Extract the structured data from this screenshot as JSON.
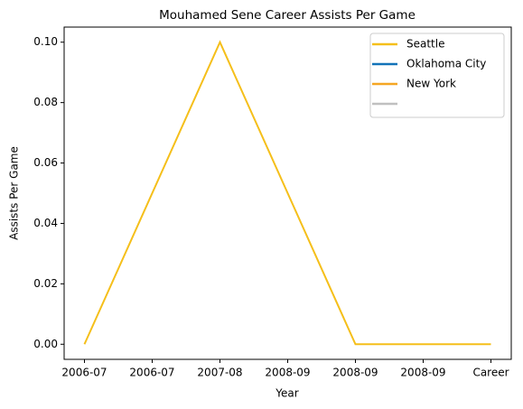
{
  "chart_data": {
    "type": "line",
    "title": "Mouhamed Sene Career Assists Per Game",
    "xlabel": "Year",
    "ylabel": "Assists Per Game",
    "x": [
      0,
      1,
      2,
      3
    ],
    "xlim": [
      -0.15,
      3.15
    ],
    "xticks": [
      {
        "value": 0,
        "label": "2006-07"
      },
      {
        "value": 0.5,
        "label": "2006-07"
      },
      {
        "value": 1,
        "label": "2007-08"
      },
      {
        "value": 1.5,
        "label": "2008-09"
      },
      {
        "value": 2,
        "label": "2008-09"
      },
      {
        "value": 2.5,
        "label": "2008-09"
      },
      {
        "value": 3,
        "label": "Career"
      }
    ],
    "ylim": [
      -0.005,
      0.105
    ],
    "yticks": [
      {
        "value": 0,
        "label": "0.00"
      },
      {
        "value": 0.02,
        "label": "0.02"
      },
      {
        "value": 0.04,
        "label": "0.04"
      },
      {
        "value": 0.06,
        "label": "0.06"
      },
      {
        "value": 0.08,
        "label": "0.08"
      },
      {
        "value": 0.1,
        "label": "0.10"
      }
    ],
    "legend": "upper right",
    "series": [
      {
        "name": "Seattle",
        "color": "#f5bf1a",
        "values": [
          0,
          0.1,
          0,
          0
        ]
      },
      {
        "name": "Oklahoma City",
        "color": "#1273b8",
        "values": [
          null,
          null,
          null,
          null
        ]
      },
      {
        "name": "New York",
        "color": "#f5a623",
        "values": [
          null,
          null,
          null,
          null
        ]
      },
      {
        "color": "#c0c0c0",
        "values": [
          null,
          null,
          null,
          null
        ]
      }
    ]
  }
}
